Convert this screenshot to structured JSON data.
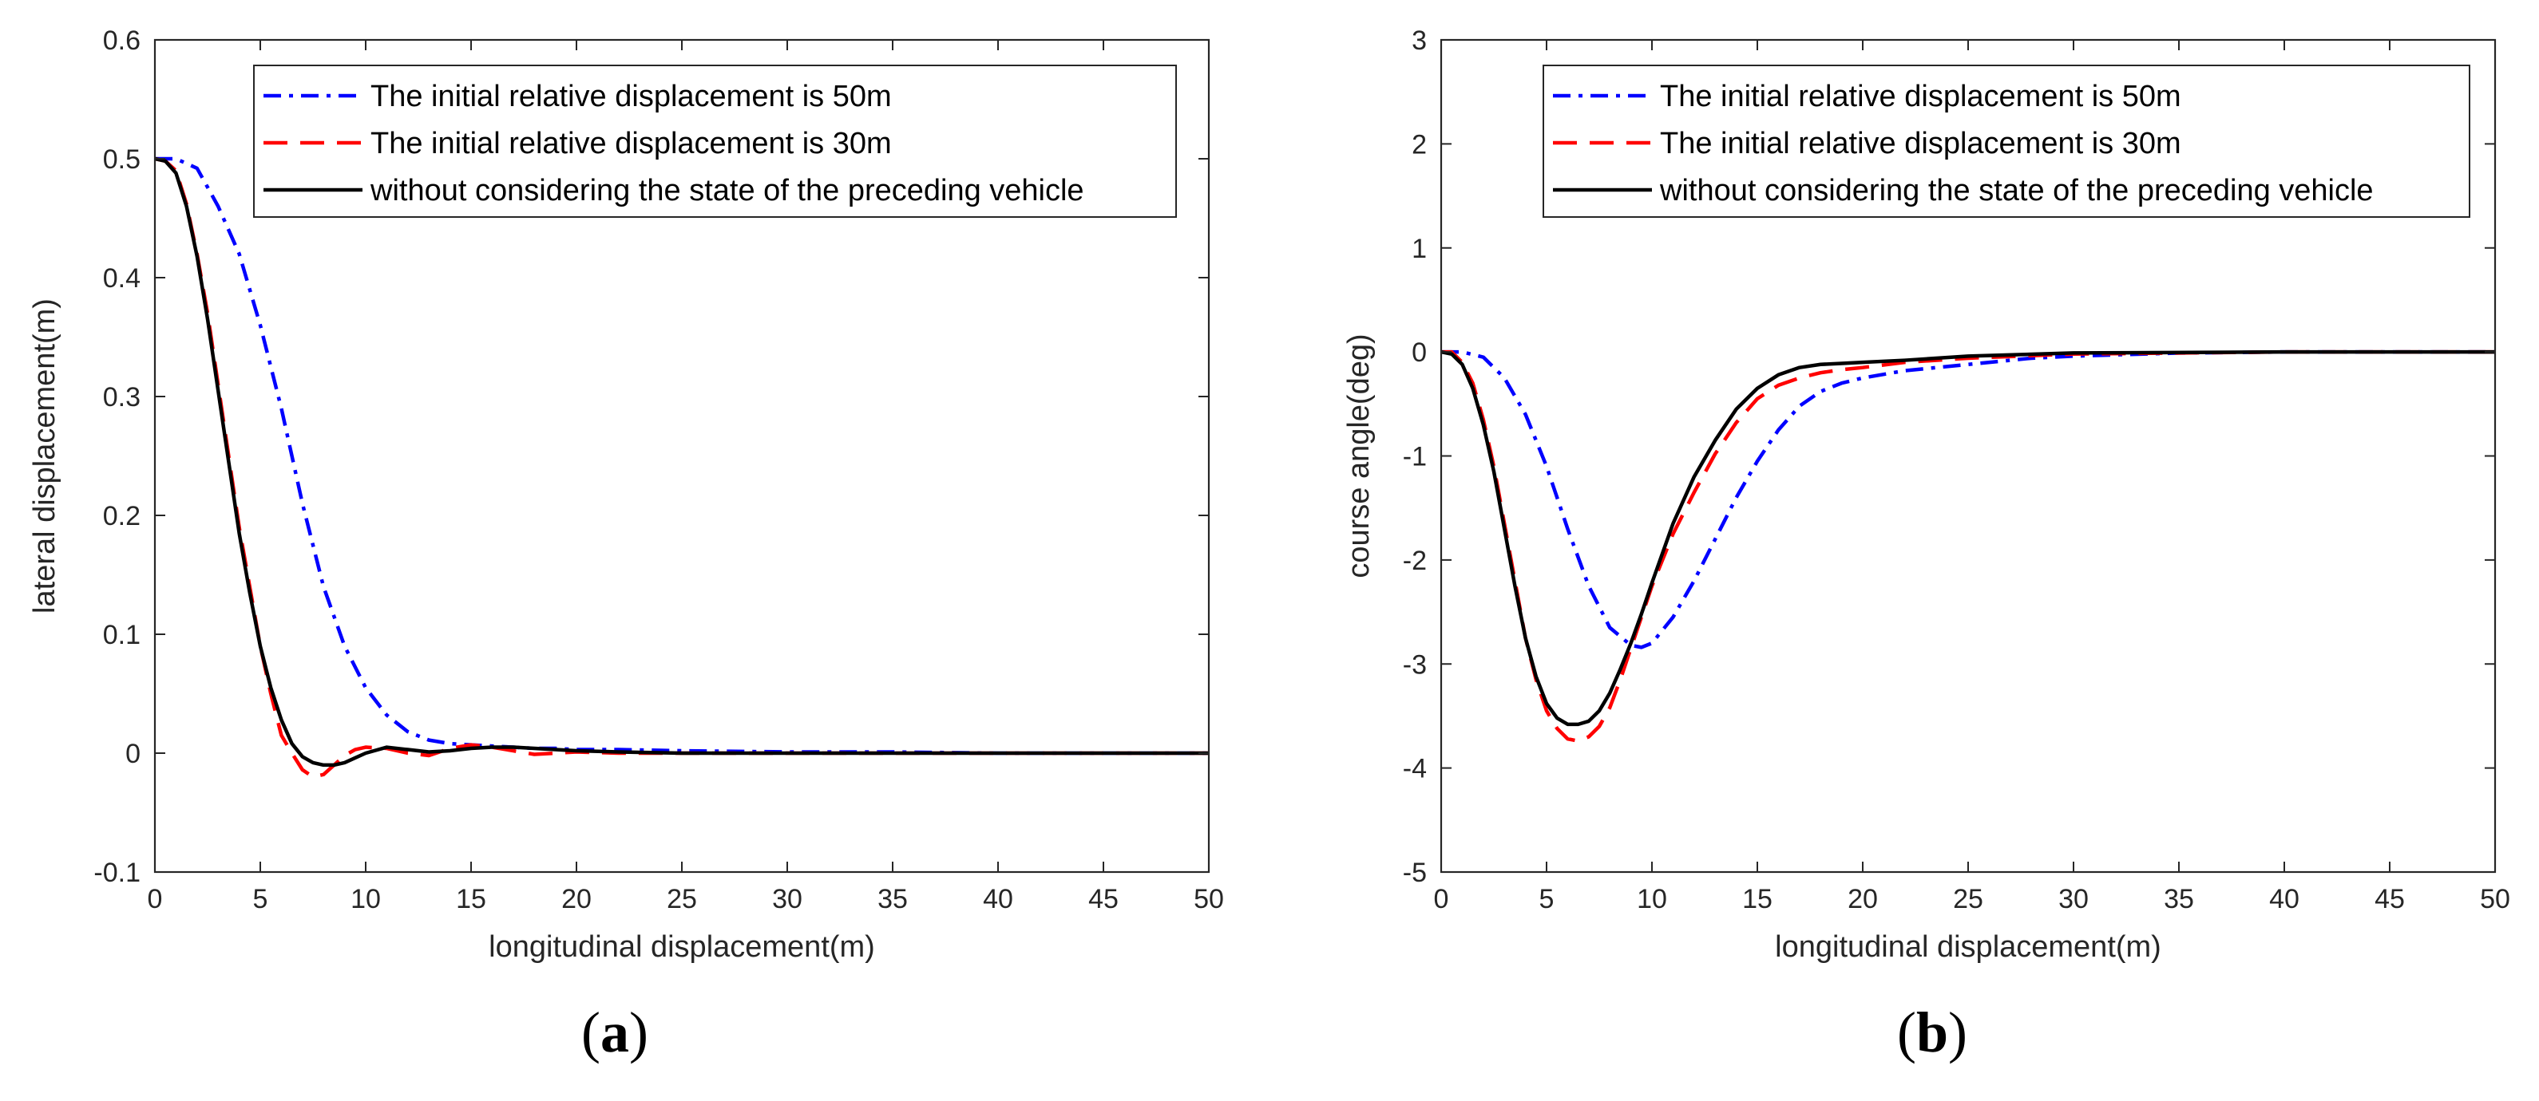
{
  "colors": {
    "series_50m": "#0000ff",
    "series_30m": "#ff0000",
    "series_base": "#000000",
    "axis": "#262626"
  },
  "chart_data": [
    {
      "type": "line",
      "panel_label": "a",
      "xlabel": "longitudinal displacement(m)",
      "ylabel": "lateral displacement(m)",
      "xlim": [
        0,
        50
      ],
      "ylim": [
        -0.1,
        0.6
      ],
      "xticks": [
        0,
        5,
        10,
        15,
        20,
        25,
        30,
        35,
        40,
        45,
        50
      ],
      "yticks": [
        -0.1,
        0,
        0.1,
        0.2,
        0.3,
        0.4,
        0.5,
        0.6
      ],
      "grid": false,
      "legend_position": "top-right",
      "series": [
        {
          "name": "The initial relative displacement is 50m",
          "style": "dash-dot",
          "color": "#0000ff",
          "x": [
            0,
            1,
            2,
            3,
            4,
            5,
            6,
            7,
            8,
            9,
            10,
            11,
            12,
            13,
            14,
            15,
            16,
            17,
            18,
            19,
            20,
            22,
            25,
            30,
            35,
            40,
            45,
            50
          ],
          "y": [
            0.5,
            0.5,
            0.492,
            0.46,
            0.42,
            0.36,
            0.29,
            0.21,
            0.14,
            0.09,
            0.055,
            0.032,
            0.018,
            0.011,
            0.008,
            0.007,
            0.006,
            0.005,
            0.004,
            0.004,
            0.003,
            0.003,
            0.002,
            0.001,
            0.001,
            0.0,
            0.0,
            0.0
          ]
        },
        {
          "name": "The initial relative displacement is 30m",
          "style": "dashed",
          "color": "#ff0000",
          "x": [
            0,
            0.5,
            1,
            1.5,
            2,
            2.5,
            3,
            3.5,
            4,
            4.5,
            5,
            5.5,
            6,
            6.5,
            7,
            7.5,
            8,
            8.5,
            9,
            9.5,
            10,
            11,
            12,
            13,
            14,
            15,
            16,
            17,
            18,
            19,
            20,
            22,
            25,
            30,
            40,
            50
          ],
          "y": [
            0.5,
            0.498,
            0.49,
            0.462,
            0.42,
            0.37,
            0.31,
            0.25,
            0.19,
            0.14,
            0.09,
            0.05,
            0.015,
            0.0,
            -0.014,
            -0.02,
            -0.018,
            -0.01,
            -0.002,
            0.003,
            0.005,
            0.004,
            0.0,
            -0.002,
            0.004,
            0.007,
            0.005,
            0.002,
            -0.001,
            0.0,
            0.001,
            0.0,
            0.0,
            0.0,
            0.0,
            0.0
          ]
        },
        {
          "name": "without considering the state of the preceding vehicle",
          "style": "solid",
          "color": "#000000",
          "x": [
            0,
            0.5,
            1,
            1.5,
            2,
            2.5,
            3,
            3.5,
            4,
            4.5,
            5,
            5.5,
            6,
            6.5,
            7,
            7.5,
            8,
            8.5,
            9,
            9.5,
            10,
            11,
            12,
            13,
            14,
            15,
            16,
            17,
            18,
            19,
            20,
            22,
            25,
            30,
            40,
            50
          ],
          "y": [
            0.5,
            0.498,
            0.488,
            0.46,
            0.418,
            0.365,
            0.305,
            0.245,
            0.185,
            0.135,
            0.09,
            0.055,
            0.028,
            0.008,
            -0.003,
            -0.008,
            -0.01,
            -0.01,
            -0.008,
            -0.004,
            0.0,
            0.005,
            0.003,
            0.001,
            0.002,
            0.004,
            0.005,
            0.005,
            0.004,
            0.003,
            0.002,
            0.001,
            0.0,
            0.0,
            0.0,
            0.0
          ]
        }
      ]
    },
    {
      "type": "line",
      "panel_label": "b",
      "xlabel": "longitudinal displacement(m)",
      "ylabel": "course angle(deg)",
      "xlim": [
        0,
        50
      ],
      "ylim": [
        -5,
        3
      ],
      "xticks": [
        0,
        5,
        10,
        15,
        20,
        25,
        30,
        35,
        40,
        45,
        50
      ],
      "yticks": [
        -5,
        -4,
        -3,
        -2,
        -1,
        0,
        1,
        2,
        3
      ],
      "grid": false,
      "legend_position": "top-right",
      "series": [
        {
          "name": "The initial relative displacement is 50m",
          "style": "dash-dot",
          "color": "#0000ff",
          "x": [
            0,
            1,
            2,
            3,
            4,
            5,
            6,
            7,
            8,
            9,
            9.5,
            10,
            11,
            12,
            13,
            14,
            15,
            16,
            17,
            18,
            19,
            20,
            22,
            25,
            28,
            30,
            35,
            40,
            50
          ],
          "y": [
            0,
            0,
            -0.05,
            -0.25,
            -0.6,
            -1.1,
            -1.7,
            -2.25,
            -2.65,
            -2.82,
            -2.84,
            -2.8,
            -2.55,
            -2.2,
            -1.8,
            -1.4,
            -1.05,
            -0.75,
            -0.52,
            -0.38,
            -0.3,
            -0.25,
            -0.18,
            -0.12,
            -0.06,
            -0.04,
            -0.01,
            0,
            0
          ]
        },
        {
          "name": "The initial relative displacement is 30m",
          "style": "dashed",
          "color": "#ff0000",
          "x": [
            0,
            0.5,
            1,
            1.5,
            2,
            2.5,
            3,
            3.5,
            4,
            4.5,
            5,
            5.5,
            6,
            6.5,
            7,
            7.5,
            8,
            8.5,
            9,
            9.5,
            10,
            11,
            12,
            13,
            14,
            15,
            16,
            17,
            18,
            19,
            20,
            22,
            25,
            30,
            40,
            50
          ],
          "y": [
            0,
            0,
            -0.1,
            -0.3,
            -0.65,
            -1.1,
            -1.65,
            -2.2,
            -2.75,
            -3.15,
            -3.45,
            -3.62,
            -3.72,
            -3.74,
            -3.7,
            -3.6,
            -3.42,
            -3.15,
            -2.85,
            -2.55,
            -2.25,
            -1.75,
            -1.35,
            -0.98,
            -0.68,
            -0.45,
            -0.32,
            -0.25,
            -0.2,
            -0.17,
            -0.15,
            -0.1,
            -0.06,
            -0.02,
            0,
            0
          ]
        },
        {
          "name": "without considering the state of the preceding vehicle",
          "style": "solid",
          "color": "#000000",
          "x": [
            0,
            0.5,
            1,
            1.5,
            2,
            2.5,
            3,
            3.5,
            4,
            4.5,
            5,
            5.5,
            6,
            6.5,
            7,
            7.5,
            8,
            8.5,
            9,
            9.5,
            10,
            11,
            12,
            13,
            14,
            15,
            16,
            17,
            18,
            19,
            20,
            22,
            25,
            30,
            40,
            50
          ],
          "y": [
            0,
            -0.02,
            -0.12,
            -0.35,
            -0.7,
            -1.15,
            -1.7,
            -2.25,
            -2.75,
            -3.12,
            -3.38,
            -3.52,
            -3.58,
            -3.58,
            -3.55,
            -3.45,
            -3.28,
            -3.05,
            -2.8,
            -2.52,
            -2.22,
            -1.65,
            -1.2,
            -0.85,
            -0.55,
            -0.35,
            -0.22,
            -0.15,
            -0.12,
            -0.11,
            -0.1,
            -0.08,
            -0.04,
            -0.01,
            0,
            0
          ]
        }
      ]
    }
  ]
}
